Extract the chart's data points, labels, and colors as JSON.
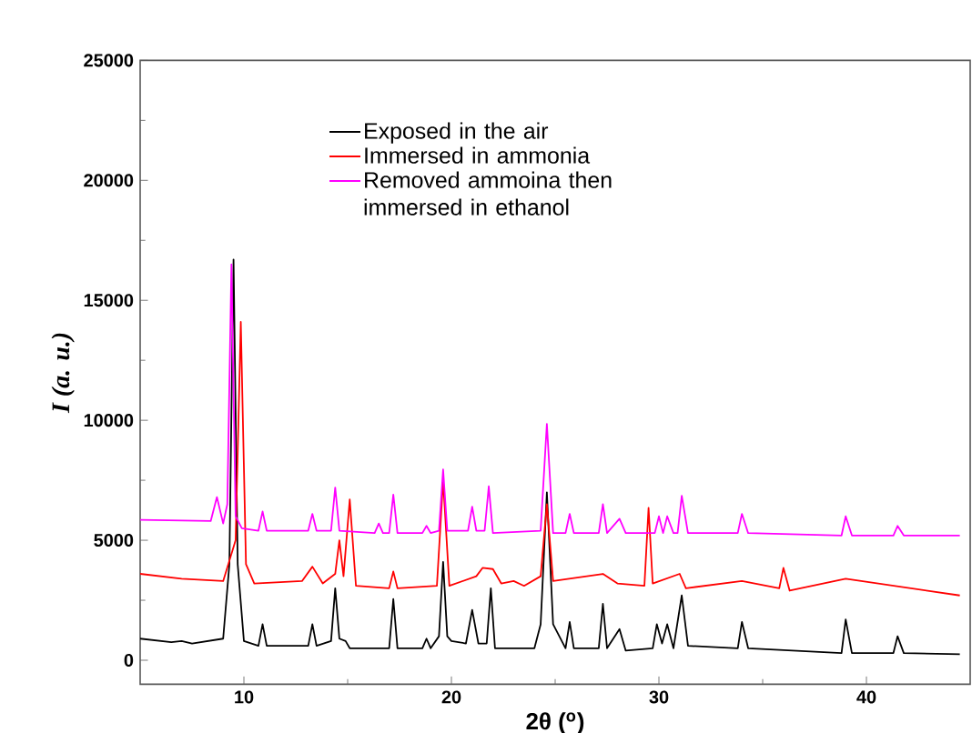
{
  "chart_data": {
    "type": "line",
    "xlabel": "2θ ($^{o}$)",
    "ylabel": "*I (a. u.)*",
    "xlim": [
      5,
      45
    ],
    "ylim": [
      -1000,
      25000
    ],
    "xticks": [
      10,
      20,
      30,
      40
    ],
    "yticks": [
      0,
      5000,
      10000,
      15000,
      20000,
      25000
    ],
    "legend": "top",
    "grid": false,
    "marker": "none",
    "line_style": "solid",
    "series": [
      {
        "name": "Exposed in the air",
        "color": "#000000",
        "x": [
          5,
          6.5,
          7,
          7.5,
          9,
          9.3,
          9.5,
          9.7,
          10,
          10.7,
          10.9,
          11.1,
          13.1,
          13.3,
          13.5,
          14.2,
          14.4,
          14.6,
          14.9,
          15.1,
          17.0,
          17.2,
          17.4,
          18.6,
          18.8,
          19.0,
          19.4,
          19.6,
          19.8,
          20.0,
          20.7,
          21.0,
          21.3,
          21.7,
          21.9,
          22.1,
          24.0,
          24.3,
          24.6,
          24.9,
          25.5,
          25.7,
          25.9,
          27.1,
          27.3,
          27.5,
          28.1,
          28.4,
          29.7,
          29.9,
          30.15,
          30.4,
          30.7,
          31.1,
          31.4,
          33.8,
          34.0,
          34.3,
          38.8,
          39.0,
          39.3,
          41.3,
          41.5,
          41.8,
          44.5
        ],
        "values": [
          900,
          750,
          800,
          700,
          900,
          4000,
          16700,
          4000,
          800,
          600,
          1500,
          600,
          600,
          1500,
          600,
          800,
          3000,
          900,
          800,
          500,
          500,
          2550,
          500,
          500,
          900,
          500,
          1000,
          4100,
          1000,
          800,
          700,
          2100,
          700,
          700,
          3000,
          500,
          500,
          1500,
          7000,
          1500,
          500,
          1600,
          500,
          500,
          2350,
          500,
          1300,
          400,
          500,
          1500,
          700,
          1500,
          500,
          2700,
          600,
          500,
          1600,
          500,
          300,
          1700,
          300,
          300,
          1000,
          300,
          250
        ]
      },
      {
        "name": "Immersed in ammonia",
        "color": "#ff0000",
        "x": [
          5,
          7,
          9,
          9.6,
          9.85,
          10.1,
          10.5,
          12.8,
          13.3,
          13.8,
          14.4,
          14.6,
          14.8,
          15.1,
          15.4,
          17.0,
          17.2,
          17.4,
          19.3,
          19.6,
          19.9,
          21.2,
          21.5,
          22.0,
          22.4,
          23.0,
          23.5,
          24.3,
          24.6,
          24.9,
          27.3,
          28.0,
          29.3,
          29.5,
          29.7,
          31.0,
          31.3,
          34.0,
          35.8,
          36.0,
          36.3,
          39.0,
          44.5
        ],
        "values": [
          3600,
          3400,
          3300,
          5000,
          14100,
          4000,
          3200,
          3300,
          3900,
          3200,
          3600,
          5000,
          3500,
          6700,
          3100,
          3000,
          3700,
          3000,
          3100,
          7500,
          3100,
          3500,
          3850,
          3800,
          3200,
          3300,
          3100,
          3500,
          6500,
          3300,
          3600,
          3200,
          3100,
          6350,
          3200,
          3600,
          3000,
          3300,
          3000,
          3850,
          2900,
          3400,
          2700
        ]
      },
      {
        "name": "Removed ammoina then immersed in ethanol",
        "color": "#ff00ff",
        "x": [
          5,
          8.4,
          8.7,
          9.0,
          9.2,
          9.4,
          9.6,
          9.9,
          10.7,
          10.9,
          11.1,
          13.1,
          13.3,
          13.5,
          14.2,
          14.4,
          14.6,
          16.3,
          16.5,
          16.7,
          17.0,
          17.2,
          17.4,
          18.6,
          18.8,
          19.0,
          19.4,
          19.6,
          19.8,
          20.8,
          21.0,
          21.2,
          21.6,
          21.8,
          22.0,
          24.3,
          24.6,
          24.9,
          25.5,
          25.7,
          25.9,
          27.1,
          27.3,
          27.5,
          28.1,
          28.4,
          29.8,
          30.0,
          30.2,
          30.4,
          30.7,
          30.9,
          31.1,
          31.4,
          33.8,
          34.0,
          34.3,
          38.8,
          39.0,
          39.3,
          41.3,
          41.5,
          41.8,
          44.5
        ],
        "values": [
          5850,
          5800,
          6800,
          5700,
          6500,
          16500,
          6000,
          5500,
          5400,
          6200,
          5400,
          5400,
          6100,
          5400,
          5400,
          7200,
          5400,
          5300,
          5700,
          5300,
          5300,
          6900,
          5300,
          5300,
          5600,
          5300,
          5400,
          7950,
          5400,
          5400,
          6400,
          5400,
          5400,
          7250,
          5300,
          5400,
          9850,
          5300,
          5300,
          6100,
          5300,
          5300,
          6500,
          5300,
          5900,
          5300,
          5300,
          6000,
          5300,
          6000,
          5300,
          5300,
          6850,
          5300,
          5300,
          6100,
          5300,
          5200,
          6000,
          5200,
          5200,
          5600,
          5200,
          5200
        ]
      }
    ]
  }
}
